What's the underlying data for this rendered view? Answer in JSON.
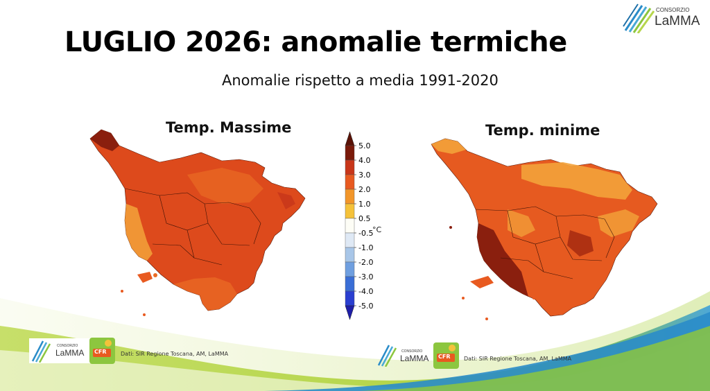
{
  "slide": {
    "title": "LUGLIO 2026: anomalie termiche",
    "subtitle": "Anomalie rispetto a media 1991-2020"
  },
  "logo": {
    "top_small": "CONSORZIO",
    "top_big": "LaMMA",
    "cfr_text": "CFR"
  },
  "maps": [
    {
      "label": "Temp. Massime",
      "credit": "Dati: SIR Regione Toscana, AM, LaMMA"
    },
    {
      "label": "Temp. minime",
      "credit": "Dati: SIR Regione Toscana, AM, LaMMA"
    }
  ],
  "colorbar": {
    "unit": "°C",
    "ticks": [
      "5.0",
      "4.0",
      "3.0",
      "2.0",
      "1.0",
      "0.5",
      "-0.5",
      "-1.0",
      "-2.0",
      "-3.0",
      "-4.0",
      "-5.0"
    ],
    "colors": [
      "#7a1a0a",
      "#c8361a",
      "#e85a20",
      "#f2962a",
      "#f5c23a",
      "#fdfdf6",
      "#dfe9f5",
      "#a8c6e8",
      "#6f9fe0",
      "#3a6ed6",
      "#2a3fd0"
    ]
  },
  "palette": {
    "dark_red": "#8a1f0e",
    "red": "#d53c16",
    "orange": "#ea6b24",
    "light_orange": "#f3a23a",
    "green": "#8cc63f",
    "blue": "#2a8cc9"
  }
}
